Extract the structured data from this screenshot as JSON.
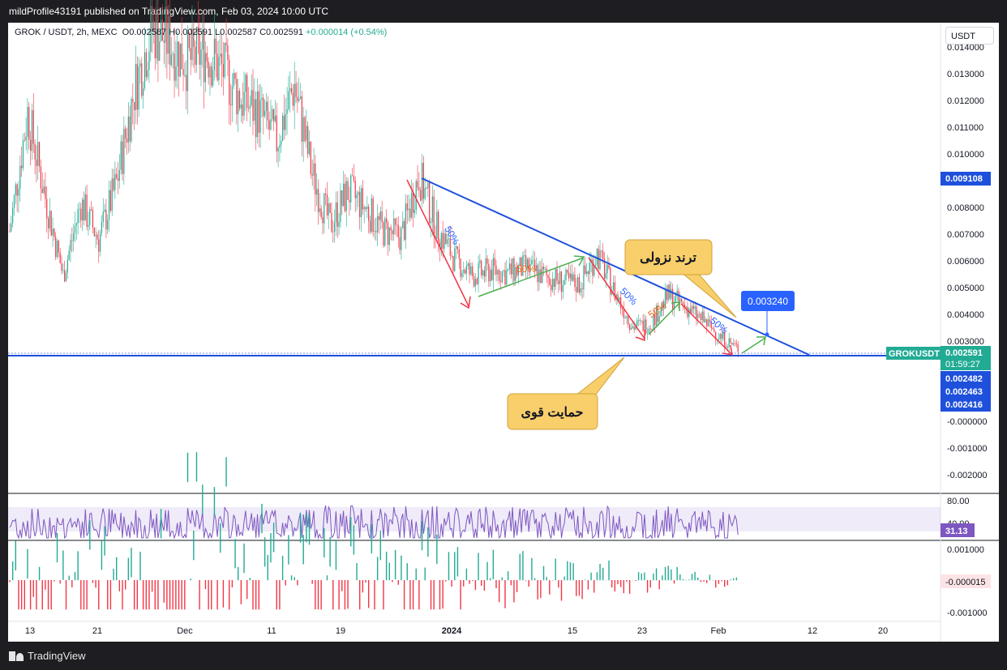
{
  "header": {
    "publish_line": "mildProfile43191 published on TradingView.com, Feb 03, 2024 10:00 UTC"
  },
  "legend": {
    "symbol": "GROK / USDT, 2h, MEXC",
    "open": "O0.002587",
    "high": "H0.002591",
    "low": "L0.002587",
    "close": "C0.002591",
    "change": "+0.000014 (+0.54%)"
  },
  "currency_button": "USDT",
  "price_axis": {
    "ticks": [
      "0.013000",
      "0.012000",
      "0.011000",
      "0.010000",
      "0.008000",
      "0.007000",
      "0.006000",
      "0.005000",
      "0.004000",
      "0.003000",
      "-0.000000",
      "-0.001000",
      "-0.002000"
    ],
    "top_partial": "0.014000"
  },
  "price_labels": {
    "upper_line": "0.009108",
    "symbol_tag": "GROKUSDT",
    "last_price": "0.002591",
    "countdown": "01:59:27",
    "level1": "0.002482",
    "level2": "0.002463",
    "level3": "0.002416"
  },
  "annotations": {
    "target_label": "0.003240",
    "trend_callout": "ترند نزولی",
    "support_callout": "حمایت قوی",
    "fib_labels": [
      "50%",
      "50%",
      "50%",
      "50%",
      "50%"
    ]
  },
  "rsi": {
    "level_80": "80.00",
    "level_40": "40.00",
    "value": "31.13"
  },
  "macd": {
    "tick_top": "0.001000",
    "value": "-0.000015",
    "tick_bottom": "-0.001000"
  },
  "time_axis": {
    "labels": [
      "13",
      "21",
      "Dec",
      "11",
      "19",
      "2024",
      "15",
      "23",
      "Feb",
      "12",
      "20"
    ]
  },
  "footer": {
    "brand": "TradingView"
  },
  "colors": {
    "up": "#22ab94",
    "down": "#f23645",
    "trendline": "#1e50dc",
    "rsi": "#7e57c2",
    "callout": "#f9cf6b",
    "arrow_green": "#4caf50",
    "arrow_red": "#f23645"
  },
  "chart_data": {
    "type": "candlestick",
    "title": "GROK / USDT, 2h, MEXC",
    "y_range": [
      -0.0025,
      0.0142
    ],
    "x_labels": [
      "13",
      "21",
      "Dec",
      "11",
      "19",
      "2024",
      "15",
      "23",
      "Feb",
      "12",
      "20"
    ],
    "series": [
      {
        "name": "GROK / USDT",
        "points": [
          {
            "x": "Nov 13",
            "y": 0.0068
          },
          {
            "x": "Nov 15",
            "y": 0.011
          },
          {
            "x": "Nov 17",
            "y": 0.008
          },
          {
            "x": "Nov 19",
            "y": 0.0052
          },
          {
            "x": "Nov 21",
            "y": 0.0078
          },
          {
            "x": "Nov 23",
            "y": 0.0065
          },
          {
            "x": "Nov 25",
            "y": 0.0085
          },
          {
            "x": "Nov 27",
            "y": 0.0118
          },
          {
            "x": "Nov 29",
            "y": 0.014
          },
          {
            "x": "Dec 1",
            "y": 0.0135
          },
          {
            "x": "Dec 3",
            "y": 0.0128
          },
          {
            "x": "Dec 5",
            "y": 0.0132
          },
          {
            "x": "Dec 7",
            "y": 0.0125
          },
          {
            "x": "Dec 9",
            "y": 0.0115
          },
          {
            "x": "Dec 11",
            "y": 0.011
          },
          {
            "x": "Dec 13",
            "y": 0.01
          },
          {
            "x": "Dec 15",
            "y": 0.012
          },
          {
            "x": "Dec 17",
            "y": 0.0088
          },
          {
            "x": "Dec 19",
            "y": 0.007
          },
          {
            "x": "Dec 21",
            "y": 0.0082
          },
          {
            "x": "Dec 23",
            "y": 0.0076
          },
          {
            "x": "Dec 25",
            "y": 0.0068
          },
          {
            "x": "Dec 27",
            "y": 0.0066
          },
          {
            "x": "Dec 29",
            "y": 0.0088
          },
          {
            "x": "Dec 31",
            "y": 0.0069
          },
          {
            "x": "Jan 2",
            "y": 0.0058
          },
          {
            "x": "Jan 4",
            "y": 0.0052
          },
          {
            "x": "Jan 6",
            "y": 0.0054
          },
          {
            "x": "Jan 8",
            "y": 0.0053
          },
          {
            "x": "Jan 10",
            "y": 0.0055
          },
          {
            "x": "Jan 12",
            "y": 0.0052
          },
          {
            "x": "Jan 14",
            "y": 0.005
          },
          {
            "x": "Jan 16",
            "y": 0.0049
          },
          {
            "x": "Jan 18",
            "y": 0.006
          },
          {
            "x": "Jan 20",
            "y": 0.0046
          },
          {
            "x": "Jan 22",
            "y": 0.0034
          },
          {
            "x": "Jan 24",
            "y": 0.0035
          },
          {
            "x": "Jan 26",
            "y": 0.0045
          },
          {
            "x": "Jan 28",
            "y": 0.0041
          },
          {
            "x": "Jan 30",
            "y": 0.0036
          },
          {
            "x": "Feb 1",
            "y": 0.003
          },
          {
            "x": "Feb 3",
            "y": 0.002591
          }
        ]
      },
      {
        "name": "RSI",
        "value": 31.13,
        "levels": [
          40,
          80
        ]
      },
      {
        "name": "MACD histogram",
        "value": -1.5e-05
      }
    ],
    "horizontal_lines": [
      0.002482,
      0.002463,
      0.002416
    ],
    "trendline": {
      "from": {
        "x": "Dec 29",
        "y": 0.0091
      },
      "to": {
        "x": "Feb 12",
        "y": 0.0025
      }
    },
    "target": 0.00324,
    "legend_position": "top-left"
  }
}
